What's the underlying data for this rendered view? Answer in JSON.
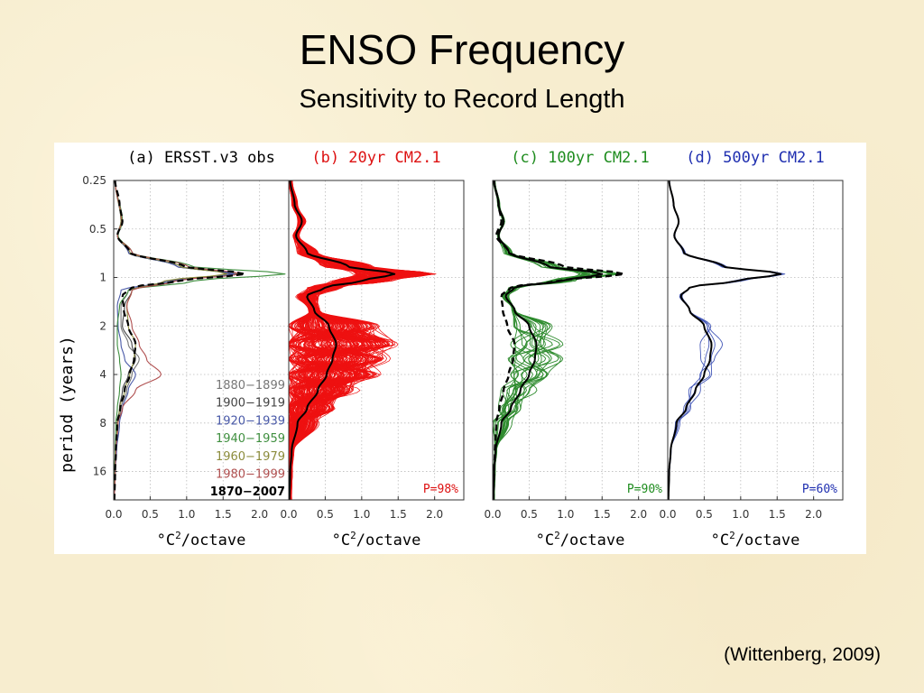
{
  "slide": {
    "title": "ENSO Frequency",
    "subtitle": "Sensitivity to Record Length",
    "citation": "(Wittenberg, 2009)"
  },
  "chart_data": {
    "type": "line",
    "shared_axes": {
      "ylabel": "period (years)",
      "yscale": "log2",
      "yticks": [
        "0.25",
        "0.5",
        "1",
        "2",
        "4",
        "8",
        "16"
      ],
      "ytick_values": [
        0.25,
        0.5,
        1,
        2,
        4,
        8,
        16
      ],
      "ylim": [
        0.25,
        24
      ],
      "xticks": [
        "0.0",
        "0.5",
        "1.0",
        "1.5",
        "2.0"
      ],
      "xtick_values": [
        0,
        0.5,
        1,
        1.5,
        2
      ],
      "xlim": [
        0,
        2.4
      ],
      "xlabel_pre": "°C",
      "xlabel_sup": "2",
      "xlabel_post": "/octave",
      "grid": true
    },
    "panels": [
      {
        "id": "a",
        "title": "(a) ERSST.v3 obs",
        "title_color": "#000000",
        "legend": [
          {
            "label": "1880−1899",
            "color": "#777777"
          },
          {
            "label": "1900−1919",
            "color": "#444444"
          },
          {
            "label": "1920−1939",
            "color": "#4a5aa8"
          },
          {
            "label": "1940−1959",
            "color": "#3f8f3f"
          },
          {
            "label": "1960−1979",
            "color": "#8c8c3c"
          },
          {
            "label": "1980−1999",
            "color": "#b05050"
          },
          {
            "label": "1870−2007",
            "color": "#000000",
            "bold": true
          }
        ],
        "series": [
          {
            "name": "1870−2007",
            "color": "#000000",
            "style": "dashed",
            "period": [
              0.25,
              0.35,
              0.45,
              0.55,
              0.7,
              0.85,
              0.95,
              1.05,
              1.15,
              1.3,
              1.6,
              2,
              2.6,
              3.2,
              4,
              5,
              6.5,
              8,
              12,
              16,
              24
            ],
            "value": [
              0.02,
              0.08,
              0.12,
              0.05,
              0.22,
              0.95,
              1.8,
              0.9,
              0.25,
              0.12,
              0.14,
              0.2,
              0.3,
              0.28,
              0.22,
              0.15,
              0.09,
              0.05,
              0.03,
              0.02,
              0.01
            ]
          },
          {
            "name": "1880−1899",
            "color": "#777777",
            "style": "solid",
            "period": [
              0.25,
              0.45,
              0.55,
              0.7,
              0.85,
              0.95,
              1.05,
              1.2,
              1.5,
              2,
              2.6,
              3.2,
              4,
              5,
              6.5,
              8,
              12,
              16,
              24
            ],
            "value": [
              0.02,
              0.11,
              0.05,
              0.2,
              0.9,
              1.7,
              0.85,
              0.2,
              0.1,
              0.1,
              0.2,
              0.35,
              0.25,
              0.18,
              0.1,
              0.06,
              0.03,
              0.02,
              0.01
            ]
          },
          {
            "name": "1900−1919",
            "color": "#444444",
            "style": "solid",
            "period": [
              0.25,
              0.45,
              0.55,
              0.7,
              0.85,
              0.95,
              1.05,
              1.2,
              1.5,
              2,
              2.6,
              3.2,
              4,
              5,
              6.5,
              8,
              12,
              16,
              24
            ],
            "value": [
              0.02,
              0.1,
              0.05,
              0.2,
              0.85,
              1.6,
              0.8,
              0.25,
              0.15,
              0.12,
              0.25,
              0.3,
              0.2,
              0.12,
              0.08,
              0.05,
              0.03,
              0.02,
              0.01
            ]
          },
          {
            "name": "1920−1939",
            "color": "#4a5aa8",
            "style": "solid",
            "period": [
              0.25,
              0.45,
              0.55,
              0.7,
              0.85,
              0.95,
              1.05,
              1.2,
              1.5,
              2,
              2.6,
              3.2,
              4,
              5,
              6.5,
              8,
              12,
              16,
              24
            ],
            "value": [
              0.02,
              0.1,
              0.05,
              0.2,
              0.85,
              1.65,
              0.75,
              0.1,
              0.05,
              0.06,
              0.1,
              0.15,
              0.3,
              0.2,
              0.12,
              0.08,
              0.04,
              0.02,
              0.01
            ]
          },
          {
            "name": "1940−1959",
            "color": "#3f8f3f",
            "style": "solid",
            "period": [
              0.25,
              0.45,
              0.55,
              0.7,
              0.85,
              0.95,
              1.05,
              1.2,
              1.5,
              2,
              2.6,
              3.2,
              4,
              5,
              6.5,
              8,
              12,
              16,
              24
            ],
            "value": [
              0.02,
              0.12,
              0.06,
              0.25,
              1.05,
              2.35,
              1.1,
              0.2,
              0.08,
              0.05,
              0.05,
              0.08,
              0.1,
              0.08,
              0.05,
              0.03,
              0.02,
              0.01,
              0.01
            ]
          },
          {
            "name": "1960−1979",
            "color": "#8c8c3c",
            "style": "solid",
            "period": [
              0.25,
              0.45,
              0.55,
              0.7,
              0.85,
              0.95,
              1.05,
              1.2,
              1.5,
              2,
              2.6,
              3.2,
              4,
              5,
              6.5,
              8,
              12,
              16,
              24
            ],
            "value": [
              0.02,
              0.1,
              0.05,
              0.22,
              0.9,
              1.55,
              0.7,
              0.25,
              0.18,
              0.2,
              0.3,
              0.28,
              0.22,
              0.15,
              0.08,
              0.05,
              0.03,
              0.02,
              0.01
            ]
          },
          {
            "name": "1980−1999",
            "color": "#b05050",
            "style": "solid",
            "period": [
              0.25,
              0.45,
              0.55,
              0.7,
              0.85,
              0.95,
              1.05,
              1.2,
              1.5,
              2,
              2.6,
              3.2,
              4,
              5,
              6.5,
              8,
              12,
              16,
              24
            ],
            "value": [
              0.02,
              0.11,
              0.05,
              0.25,
              1.0,
              1.75,
              0.85,
              0.25,
              0.18,
              0.25,
              0.35,
              0.45,
              0.65,
              0.3,
              0.12,
              0.06,
              0.03,
              0.02,
              0.01
            ]
          }
        ]
      },
      {
        "id": "b",
        "title": "(b) 20yr CM2.1",
        "title_color": "#dd1111",
        "ensemble_color": "#ee1111",
        "ensemble_members": 200,
        "stat_label": "P=98%",
        "stat_color": "#dd1111",
        "mean": {
          "color": "#000000",
          "style": "solid",
          "period": [
            0.25,
            0.35,
            0.45,
            0.55,
            0.7,
            0.85,
            0.95,
            1.05,
            1.15,
            1.3,
            1.6,
            2,
            2.6,
            3.2,
            4,
            5,
            6.5,
            8,
            12,
            16,
            24
          ],
          "value": [
            0.02,
            0.08,
            0.18,
            0.1,
            0.25,
            0.8,
            1.45,
            1.0,
            0.5,
            0.25,
            0.35,
            0.55,
            0.65,
            0.6,
            0.52,
            0.4,
            0.25,
            0.12,
            0.04,
            0.02,
            0.01
          ]
        }
      },
      {
        "id": "c",
        "title": "(c) 100yr CM2.1",
        "title_color": "#1e8c1e",
        "ensemble_color": "#2e8b2e",
        "ensemble_members": 20,
        "stat_label": "P=90%",
        "stat_color": "#1e8c1e",
        "obs": {
          "color": "#000000",
          "style": "dashed",
          "period": [
            0.25,
            0.35,
            0.45,
            0.55,
            0.7,
            0.85,
            0.95,
            1.05,
            1.15,
            1.3,
            1.6,
            2,
            2.6,
            3.2,
            4,
            5,
            6.5,
            8,
            12,
            16,
            24
          ],
          "value": [
            0.02,
            0.08,
            0.12,
            0.05,
            0.22,
            0.95,
            1.8,
            0.9,
            0.25,
            0.12,
            0.14,
            0.2,
            0.3,
            0.28,
            0.22,
            0.15,
            0.09,
            0.05,
            0.03,
            0.02,
            0.01
          ]
        },
        "mean": {
          "color": "#000000",
          "style": "solid",
          "period": [
            0.25,
            0.35,
            0.45,
            0.55,
            0.7,
            0.85,
            0.95,
            1.05,
            1.15,
            1.3,
            1.6,
            2,
            2.6,
            3.2,
            4,
            5,
            6.5,
            8,
            12,
            16,
            24
          ],
          "value": [
            0.02,
            0.08,
            0.15,
            0.08,
            0.22,
            0.75,
            1.5,
            0.95,
            0.3,
            0.18,
            0.3,
            0.5,
            0.6,
            0.58,
            0.5,
            0.38,
            0.25,
            0.12,
            0.04,
            0.02,
            0.01
          ]
        }
      },
      {
        "id": "d",
        "title": "(d) 500yr CM2.1",
        "title_color": "#1f2fb0",
        "ensemble_color": "#4458b8",
        "ensemble_members": 4,
        "stat_label": "P=60%",
        "stat_color": "#1f2fb0",
        "mean": {
          "color": "#000000",
          "style": "solid",
          "period": [
            0.25,
            0.35,
            0.45,
            0.55,
            0.7,
            0.85,
            0.95,
            1.05,
            1.15,
            1.3,
            1.6,
            2,
            2.6,
            3.2,
            4,
            5,
            6.5,
            8,
            12,
            16,
            24
          ],
          "value": [
            0.02,
            0.08,
            0.15,
            0.09,
            0.22,
            0.75,
            1.55,
            0.95,
            0.3,
            0.18,
            0.3,
            0.5,
            0.6,
            0.58,
            0.5,
            0.38,
            0.25,
            0.12,
            0.04,
            0.02,
            0.01
          ]
        }
      }
    ]
  }
}
